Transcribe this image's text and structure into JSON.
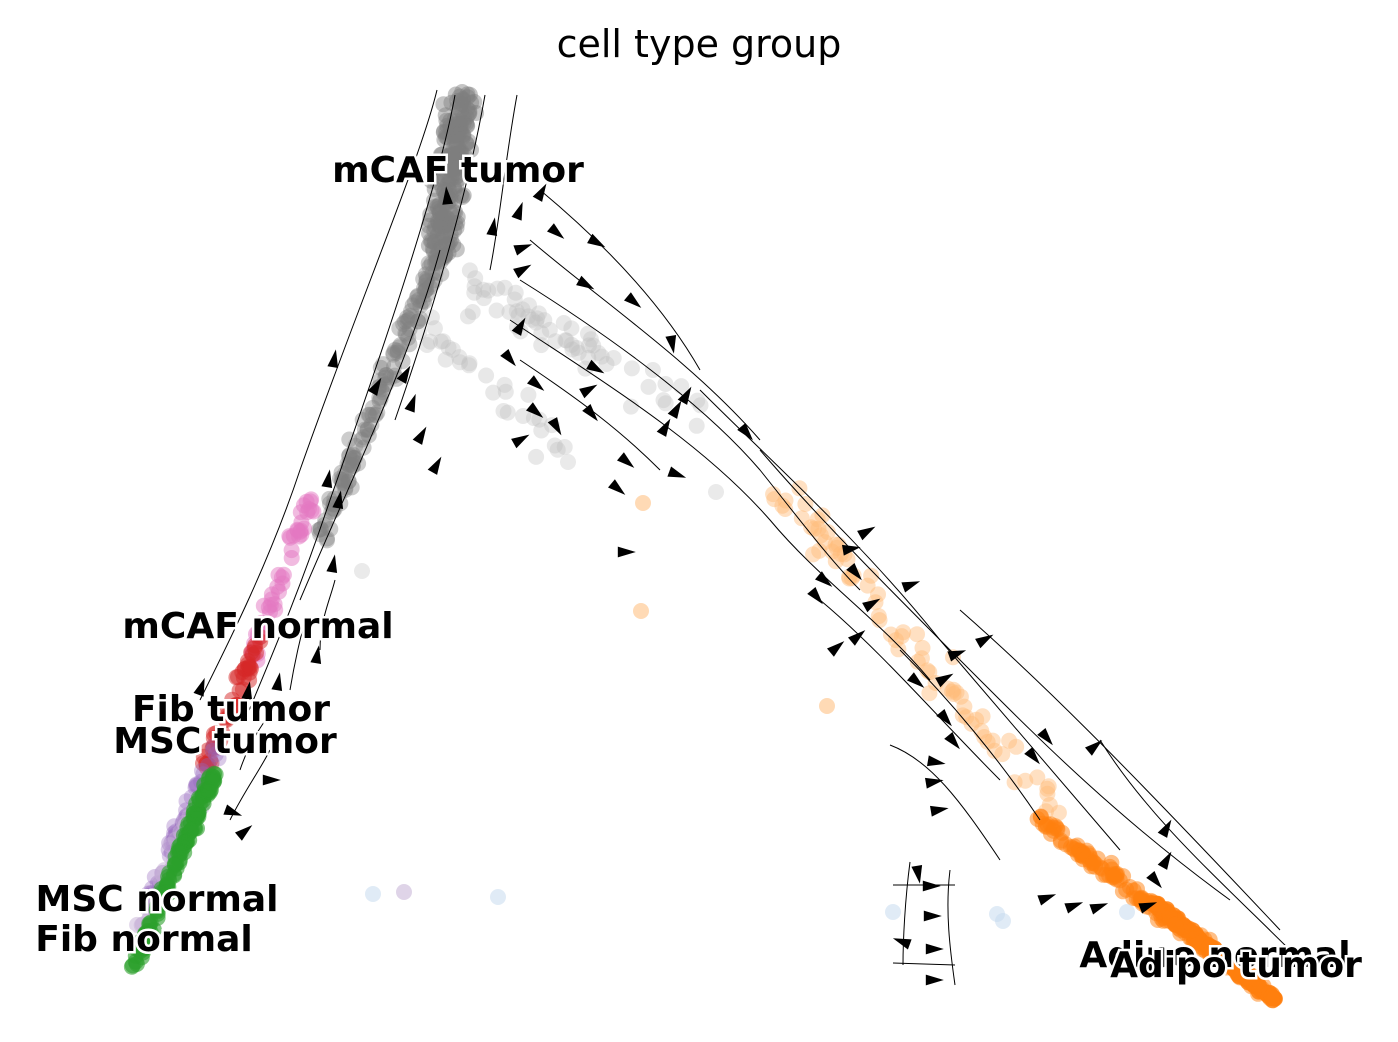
{
  "chart_data": {
    "type": "scatter",
    "title": "cell type group",
    "xlabel": "",
    "ylabel": "",
    "grid": false,
    "legend": "on data",
    "axes_visible": false,
    "overlay": "streamline arrows",
    "groups": [
      {
        "name": "mCAF tumor",
        "color": "#7f7f7f"
      },
      {
        "name": "mCAF normal",
        "color": "#e377c2"
      },
      {
        "name": "Fib tumor",
        "color": "#d62728"
      },
      {
        "name": "MSC tumor",
        "color": "#9467bd"
      },
      {
        "name": "MSC normal",
        "color": "#c5b0d5"
      },
      {
        "name": "Fib normal",
        "color": "#2ca02c"
      },
      {
        "name": "Adipo normal",
        "color": "#ffbb78"
      },
      {
        "name": "Adipo tumor",
        "color": "#ff7f0e"
      }
    ],
    "labels": [
      {
        "text": "mCAF tumor"
      },
      {
        "text": "mCAF normal"
      },
      {
        "text": "Fib tumor"
      },
      {
        "text": "MSC tumor"
      },
      {
        "text": "MSC normal"
      },
      {
        "text": "Fib normal"
      },
      {
        "text": "Adipo normal"
      },
      {
        "text": "Adipo tumor"
      }
    ]
  }
}
